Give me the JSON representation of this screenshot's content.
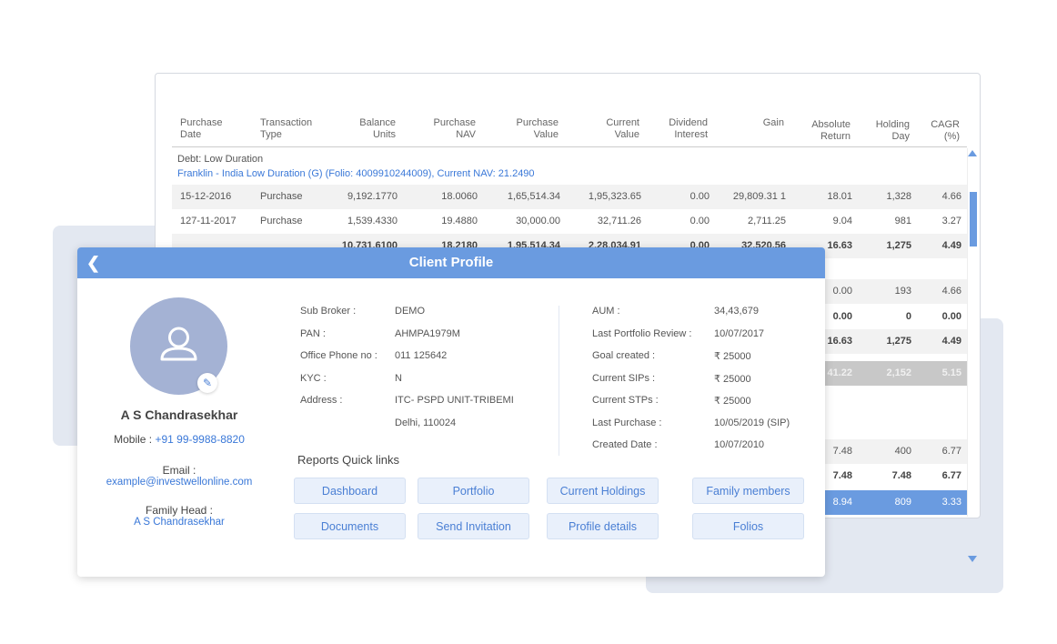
{
  "table": {
    "headers": [
      [
        "Purchase",
        "Date"
      ],
      [
        "Transaction",
        "Type"
      ],
      [
        "Balance",
        "Units"
      ],
      [
        "Purchase",
        "NAV"
      ],
      [
        "Purchase",
        "Value"
      ],
      [
        "Current",
        "Value"
      ],
      [
        "Dividend",
        "Interest"
      ],
      [
        "Gain",
        ""
      ],
      [
        "Absolute",
        "Return"
      ],
      [
        "Holding",
        "Day"
      ],
      [
        "CAGR",
        "(%)"
      ]
    ],
    "category": "Debt: Low Duration",
    "scheme": "Franklin - India Low Duration (G) (Folio: 4009910244009), Current NAV: 21.2490",
    "rows": [
      {
        "style": "gray",
        "cells": [
          "15-12-2016",
          "Purchase",
          "9,192.1770",
          "18.0060",
          "1,65,514.34",
          "1,95,323.65",
          "0.00",
          "29,809.31 1",
          "18.01",
          "1,328",
          "4.66"
        ]
      },
      {
        "style": "",
        "cells": [
          "127-11-2017",
          "Purchase",
          "1,539.4330",
          "19.4880",
          "30,000.00",
          "32,711.26",
          "0.00",
          "2,711.25",
          "9.04",
          "981",
          "3.27"
        ]
      },
      {
        "style": "gray bold",
        "cells": [
          "",
          "",
          "10,731.6100",
          "18.2180",
          "1,95,514.34",
          "2,28,034.91",
          "0.00",
          "32,520.56",
          "16.63",
          "1,275",
          "4.49"
        ]
      },
      {
        "style": "gray",
        "cells": [
          "",
          "",
          "",
          "",
          "",
          "",
          "",
          "",
          "0.00",
          "193",
          "4.66"
        ]
      },
      {
        "style": "bold",
        "cells": [
          "",
          "",
          "",
          "",
          "",
          "",
          "",
          "",
          "0.00",
          "0",
          "0.00"
        ]
      },
      {
        "style": "gray bold",
        "cells": [
          "",
          "",
          "",
          "",
          "",
          "",
          "",
          "",
          "16.63",
          "1,275",
          "4.49"
        ]
      },
      {
        "style": "dark bold",
        "cells": [
          "",
          "",
          "",
          "",
          "",
          "",
          "",
          "",
          "41.22",
          "2,152",
          "5.15"
        ]
      },
      {
        "style": "gray",
        "cells": [
          "",
          "",
          "",
          "",
          "",
          "",
          "",
          "",
          "7.48",
          "400",
          "6.77"
        ]
      },
      {
        "style": "bold",
        "cells": [
          "",
          "",
          "",
          "",
          "",
          "",
          "",
          "",
          "7.48",
          "7.48",
          "6.77"
        ]
      },
      {
        "style": "blue",
        "cells": [
          "",
          "",
          "",
          "",
          "",
          "",
          "",
          "",
          "8.94",
          "809",
          "3.33"
        ]
      }
    ]
  },
  "profile": {
    "title": "Client Profile",
    "name": "A S Chandrasekhar",
    "mobile_label": "Mobile :",
    "mobile": "+91 99-9988-8820",
    "email_label": "Email :",
    "email": "example@investwellonline.com",
    "family_label": "Family Head :",
    "family_head": "A S Chandrasekhar",
    "left_fields": [
      {
        "label": "Sub Broker :",
        "value": "DEMO"
      },
      {
        "label": "PAN :",
        "value": "AHMPA1979M"
      },
      {
        "label": "Office Phone no :",
        "value": "011 125642"
      },
      {
        "label": "KYC :",
        "value": "N"
      },
      {
        "label": "Address :",
        "value": "ITC- PSPD UNIT-TRIBEMI"
      },
      {
        "label": "",
        "value": "Delhi, 110024"
      }
    ],
    "right_fields": [
      {
        "label": "AUM :",
        "value": "34,43,679"
      },
      {
        "label": "Last Portfolio Review :",
        "value": "10/07/2017"
      },
      {
        "label": "Goal created :",
        "value": "₹ 25000"
      },
      {
        "label": "Current SIPs :",
        "value": "₹ 25000"
      },
      {
        "label": "Current STPs :",
        "value": "₹ 25000"
      },
      {
        "label": "Last Purchase :",
        "value": "10/05/2019 (SIP)"
      },
      {
        "label": "Created Date :",
        "value": "10/07/2010"
      }
    ],
    "quick_links_title": "Reports Quick links",
    "quick_links": [
      "Dashboard",
      "Portfolio",
      "Current Holdings",
      "Family members",
      "Documents",
      "Send Invitation",
      "Profile details",
      "Folios"
    ]
  }
}
